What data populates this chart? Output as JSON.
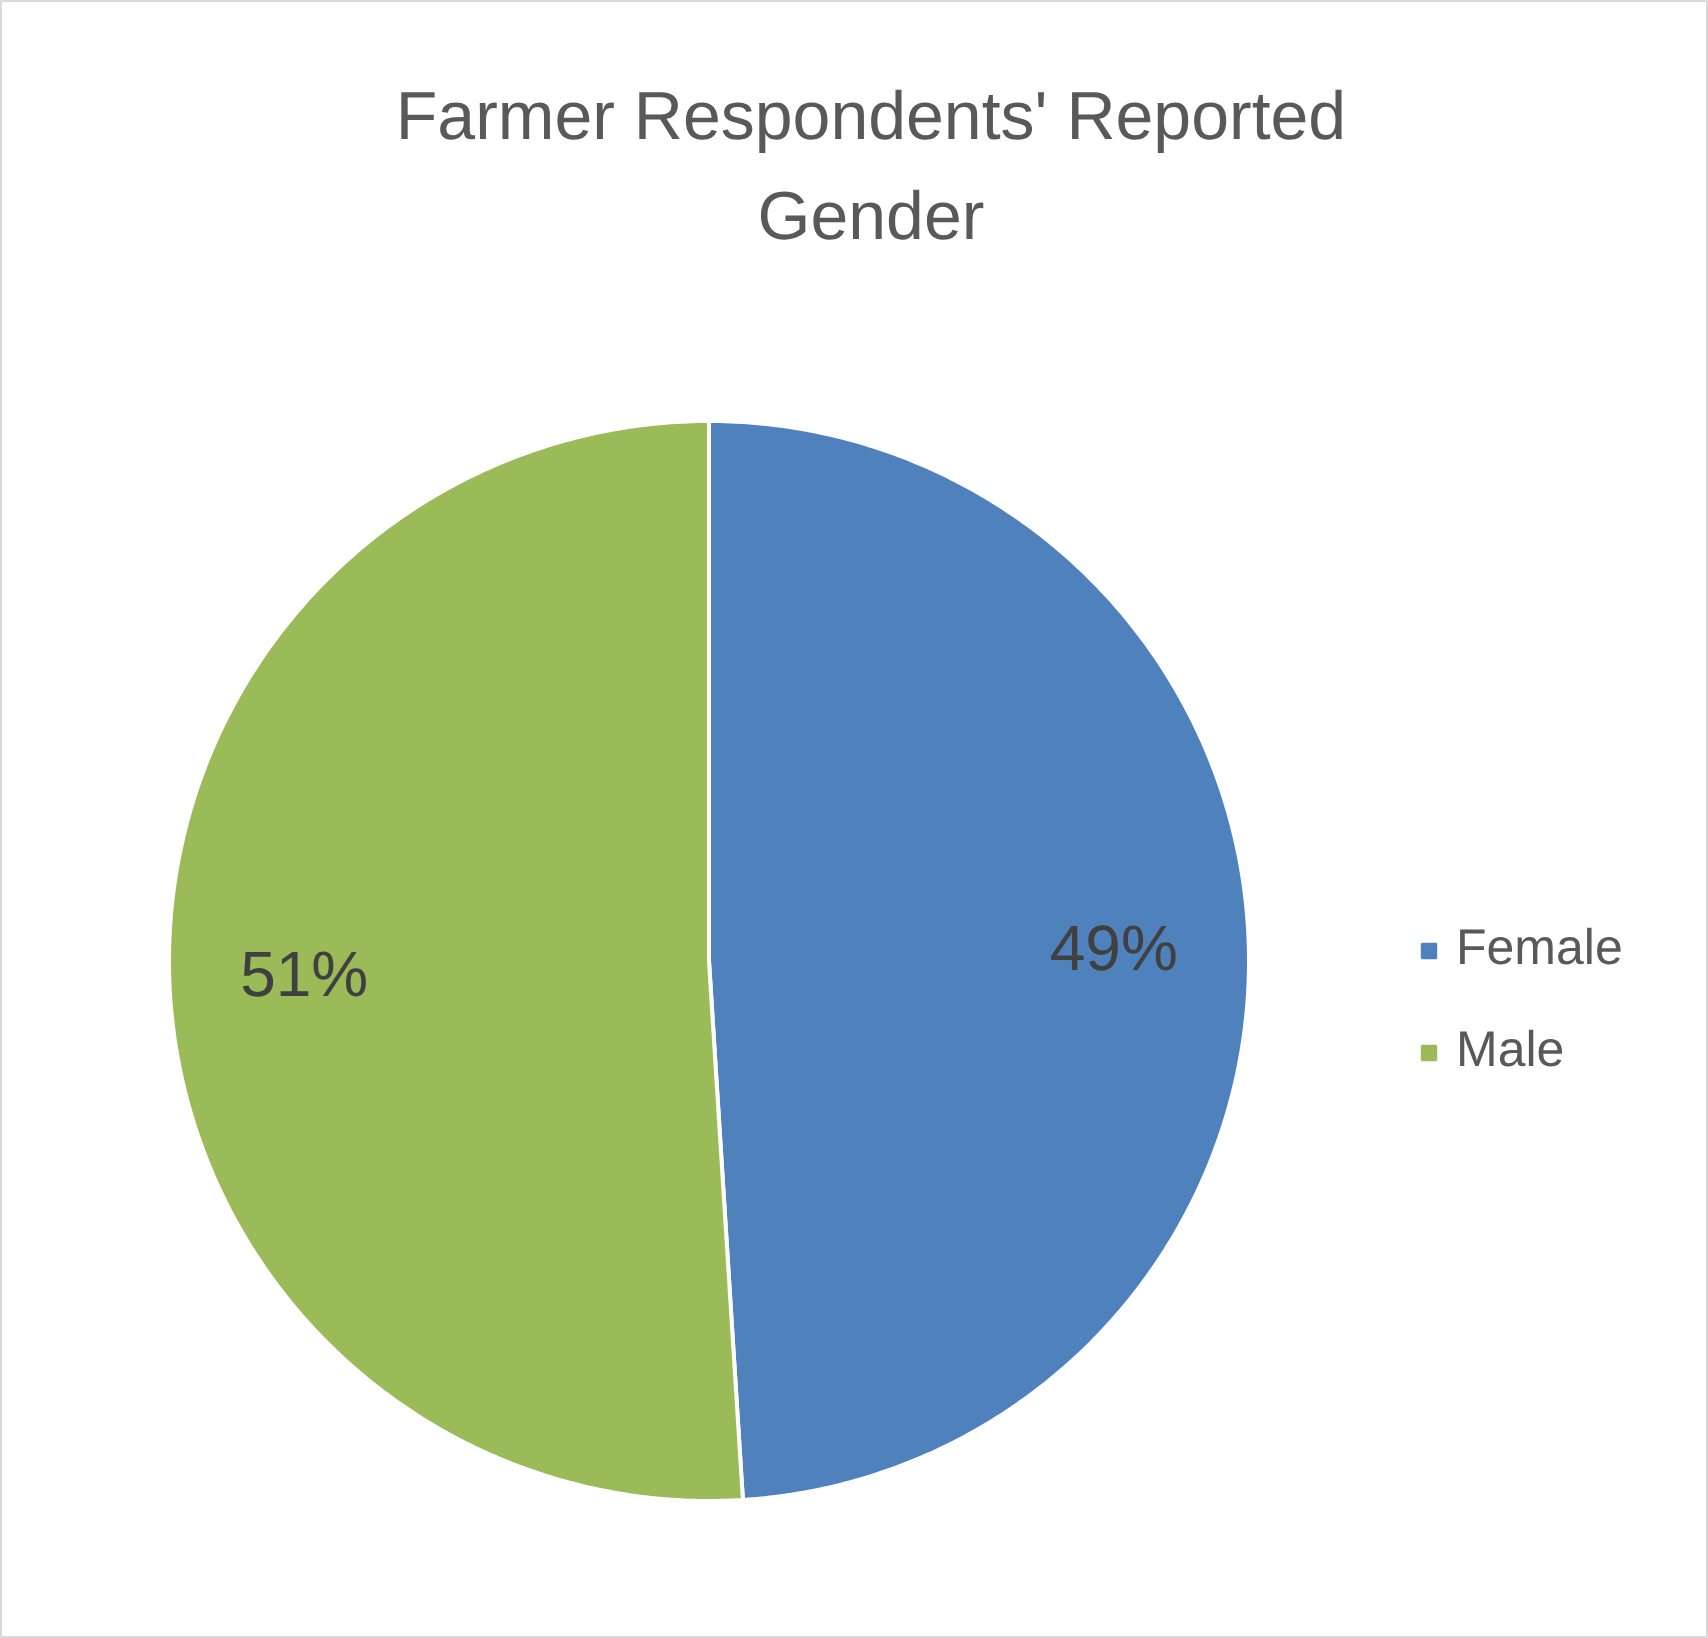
{
  "chart_data": {
    "type": "pie",
    "title": "Farmer Respondents' Reported Gender",
    "categories": [
      "Female",
      "Male"
    ],
    "values": [
      49,
      51
    ],
    "colors": [
      "#4f81bd",
      "#9bbb59"
    ],
    "value_labels": [
      "49%",
      "51%"
    ],
    "legend": "right"
  }
}
